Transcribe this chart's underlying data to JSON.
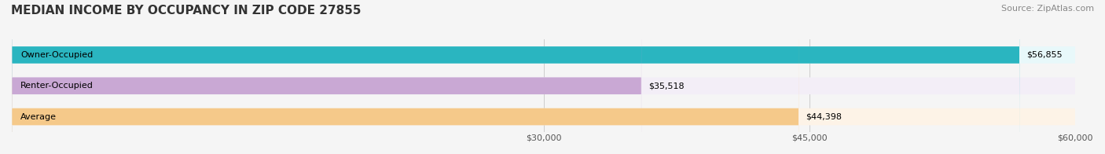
{
  "title": "MEDIAN INCOME BY OCCUPANCY IN ZIP CODE 27855",
  "source": "Source: ZipAtlas.com",
  "categories": [
    "Owner-Occupied",
    "Renter-Occupied",
    "Average"
  ],
  "values": [
    56855,
    35518,
    44398
  ],
  "labels": [
    "$56,855",
    "$35,518",
    "$44,398"
  ],
  "bar_colors": [
    "#2ab5c0",
    "#c9a8d4",
    "#f5c98a"
  ],
  "bar_bg_colors": [
    "#e8f8fa",
    "#f3eef7",
    "#fdf3e7"
  ],
  "xmin": 0,
  "xmax": 60000,
  "xticks": [
    30000,
    45000,
    60000
  ],
  "xtick_labels": [
    "$30,000",
    "$45,000",
    "$60,000"
  ],
  "title_fontsize": 11,
  "source_fontsize": 8,
  "label_fontsize": 8,
  "bar_height": 0.55,
  "background_color": "#f5f5f5"
}
